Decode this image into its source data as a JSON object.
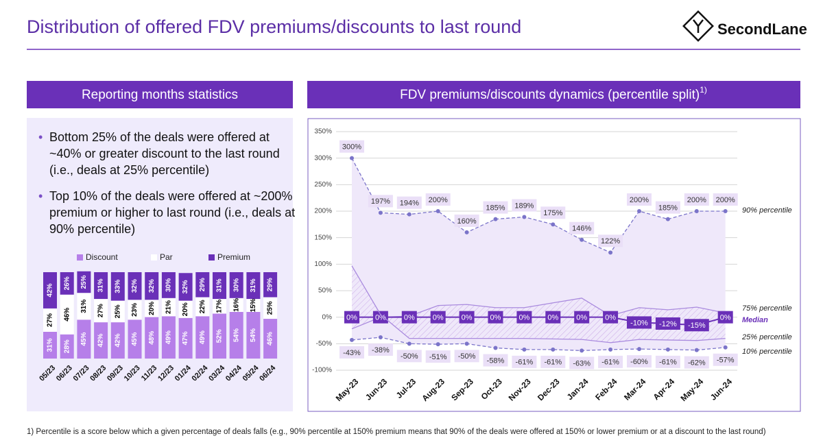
{
  "header": {
    "title": "Distribution of offered FDV premiums/discounts to last round",
    "logo": "SecondLane"
  },
  "left_panel": {
    "heading": "Reporting months statistics",
    "bullets": [
      "Bottom 25% of the deals were offered at ~40% or greater discount to the last round (i.e., deals at 25% percentile)",
      "Top 10% of the deals were offered at ~200% premium or higher to last round (i.e., deals at 90% percentile)"
    ]
  },
  "right_panel": {
    "heading": "FDV premiums/discounts dynamics (percentile split)",
    "heading_note": "1)"
  },
  "footnote": "1) Percentile is a score below which a given percentage of deals falls (e.g., 90% percentile at 150% premium means that 90% of the deals were offered at 150% or lower premium or at a discount to the last round)",
  "chart_data": [
    {
      "type": "bar",
      "stacked": true,
      "ylim": [
        0,
        100
      ],
      "categories": [
        "05/23",
        "06/23",
        "07/23",
        "08/23",
        "09/23",
        "10/23",
        "11/23",
        "12/23",
        "01/24",
        "02/24",
        "03/24",
        "04/24",
        "05/24",
        "06/24"
      ],
      "series": [
        {
          "name": "Discount",
          "color": "#b67fe9",
          "label_color": "#ffffff",
          "values": [
            31,
            28,
            45,
            42,
            42,
            45,
            48,
            49,
            47,
            49,
            52,
            54,
            54,
            46
          ],
          "value_labels": [
            "31%",
            "28%",
            "45%",
            "42%",
            "42%",
            "45%",
            "48%",
            "49%",
            "47%",
            "49%",
            "52%",
            "54%",
            "54%",
            "46%"
          ]
        },
        {
          "name": "Par",
          "color": "#ffffff",
          "label_color": "#000000",
          "values": [
            27,
            46,
            31,
            27,
            25,
            23,
            20,
            21,
            20,
            22,
            17,
            16,
            15,
            25
          ],
          "value_labels": [
            "27%",
            "46%",
            "31%",
            "27%",
            "25%",
            "23%",
            "20%",
            "21%",
            "20%",
            "22%",
            "17%",
            "16%",
            "15%",
            "25%"
          ]
        },
        {
          "name": "Premium",
          "color": "#6a30b8",
          "label_color": "#ffffff",
          "values": [
            42,
            26,
            25,
            31,
            33,
            32,
            32,
            30,
            32,
            29,
            31,
            30,
            31,
            29
          ],
          "value_labels": [
            "42%",
            "26%",
            "25%",
            "31%",
            "33%",
            "32%",
            "32%",
            "30%",
            "32%",
            "29%",
            "31%",
            "30%",
            "31%",
            "29%"
          ]
        }
      ]
    },
    {
      "type": "line",
      "grid": true,
      "ylim": [
        -100,
        350
      ],
      "yticks": [
        {
          "value": -100,
          "label": "-100%"
        },
        {
          "value": -50,
          "label": "-50%"
        },
        {
          "value": 0,
          "label": "0%"
        },
        {
          "value": 50,
          "label": "50%"
        },
        {
          "value": 100,
          "label": "100%"
        },
        {
          "value": 150,
          "label": "150%"
        },
        {
          "value": 200,
          "label": "200%"
        },
        {
          "value": 250,
          "label": "250%"
        },
        {
          "value": 300,
          "label": "300%"
        },
        {
          "value": 350,
          "label": "350%"
        }
      ],
      "categories": [
        "May-23",
        "Jun-23",
        "Jul-23",
        "Aug-23",
        "Sep-23",
        "Oct-23",
        "Nov-23",
        "Dec-23",
        "Jan-24",
        "Feb-24",
        "Mar-24",
        "Apr-24",
        "May-24",
        "Jun-24"
      ],
      "series": [
        {
          "name": "90% percentile",
          "color": "#7b74c9",
          "style": "dashed",
          "label_pos": "above",
          "values": [
            300,
            197,
            194,
            200,
            160,
            185,
            189,
            175,
            146,
            122,
            200,
            185,
            200,
            200
          ],
          "value_labels": [
            "300%",
            "197%",
            "194%",
            "200%",
            "160%",
            "185%",
            "189%",
            "175%",
            "146%",
            "122%",
            "200%",
            "185%",
            "200%",
            "200%"
          ]
        },
        {
          "name": "75% percentile",
          "color": "#a98ade",
          "style": "solid",
          "values": [
            -22,
            0,
            2,
            22,
            24,
            18,
            18,
            27,
            36,
            3,
            18,
            14,
            19,
            8
          ]
        },
        {
          "name": "Median",
          "color": "#6a30b8",
          "style": "boxed",
          "label_pos": "center",
          "values": [
            0,
            0,
            0,
            0,
            0,
            0,
            0,
            0,
            0,
            0,
            -10,
            -12,
            -15,
            0
          ],
          "value_labels": [
            "0%",
            "0%",
            "0%",
            "0%",
            "0%",
            "0%",
            "0%",
            "0%",
            "0%",
            "0%",
            "-10%",
            "-12%",
            "-15%",
            "0%"
          ]
        },
        {
          "name": "25% percentile",
          "color": "#a98ade",
          "style": "solid",
          "values": [
            97,
            5,
            -40,
            -40,
            -40,
            -40,
            -40,
            -41,
            -42,
            -48,
            -42,
            -43,
            -44,
            -40
          ]
        },
        {
          "name": "10% percentile",
          "color": "#7b74c9",
          "style": "dashed",
          "label_pos": "below",
          "values": [
            -43,
            -38,
            -50,
            -51,
            -50,
            -58,
            -61,
            -61,
            -63,
            -61,
            -60,
            -61,
            -62,
            -57
          ],
          "value_labels": [
            "-43%",
            "-38%",
            "-50%",
            "-51%",
            "-50%",
            "-58%",
            "-61%",
            "-61%",
            "-63%",
            "-61%",
            "-60%",
            "-61%",
            "-62%",
            "-57%"
          ]
        }
      ]
    }
  ]
}
